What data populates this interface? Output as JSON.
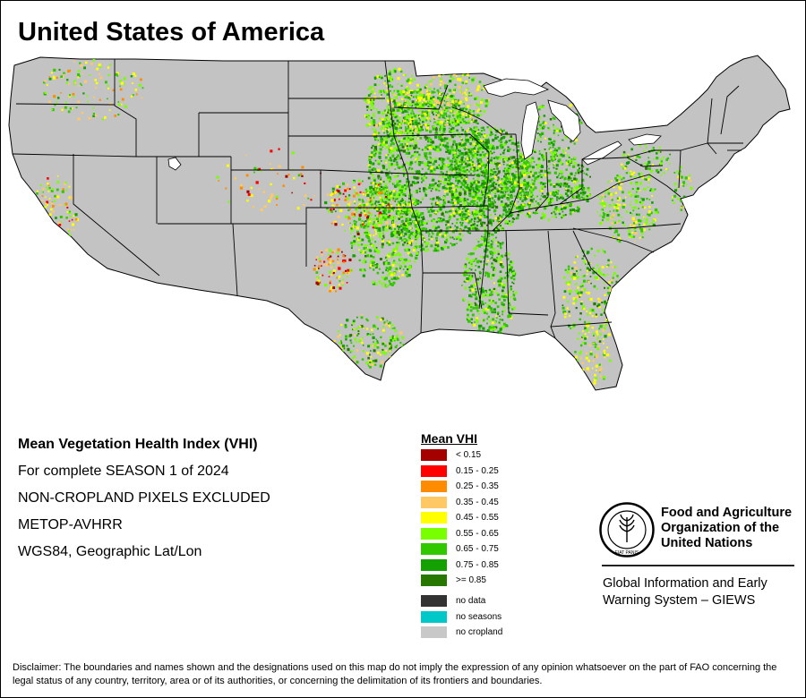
{
  "map": {
    "title": "United States of America"
  },
  "info_lines": [
    "Mean Vegetation Health Index (VHI)",
    "For complete SEASON 1 of 2024",
    "NON-CROPLAND PIXELS EXCLUDED",
    "METOP-AVHRR",
    "WGS84, Geographic Lat/Lon"
  ],
  "legend": {
    "title": "Mean VHI",
    "classes": [
      {
        "label": "< 0.15",
        "color": "#a50000"
      },
      {
        "label": "0.15 - 0.25",
        "color": "#ff0000"
      },
      {
        "label": "0.25 - 0.35",
        "color": "#ff8c00"
      },
      {
        "label": "0.35 - 0.45",
        "color": "#ffc864"
      },
      {
        "label": "0.45 - 0.55",
        "color": "#ffff00"
      },
      {
        "label": "0.55 - 0.65",
        "color": "#78ff00"
      },
      {
        "label": "0.65 - 0.75",
        "color": "#32c800"
      },
      {
        "label": "0.75 - 0.85",
        "color": "#14a000"
      },
      {
        "label": ">= 0.85",
        "color": "#287800"
      }
    ],
    "special": [
      {
        "label": "no data",
        "color": "#333333"
      },
      {
        "label": "no seasons",
        "color": "#00c8c8"
      },
      {
        "label": "no cropland",
        "color": "#c8c8c8"
      }
    ]
  },
  "colors": {
    "land": "#c3c3c3",
    "boundary": "#000000",
    "water": "#ffffff"
  },
  "organization": {
    "logo_letters": "FAO",
    "logo_motto": "FIAT PANIS",
    "name_lines": [
      "Food and Agriculture",
      "Organization of the",
      "United Nations"
    ],
    "giews_lines": [
      "Global Information and Early",
      "Warning System – GIEWS"
    ]
  },
  "disclaimer": "Disclaimer: The boundaries and names shown and the designations used on this map do not imply the expression of any opinion whatsoever on the part of FAO concerning the legal status of any country, territory, area or of its authorities, or concerning the delimitation of its frontiers and boundaries."
}
